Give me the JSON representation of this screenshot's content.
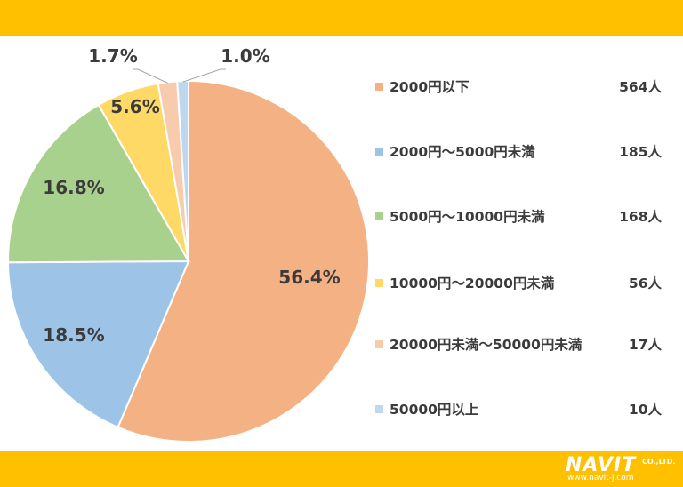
{
  "chart_data": {
    "type": "pie",
    "slices": [
      {
        "label": "2000円以下",
        "count": "564人",
        "percent": 56.4,
        "percent_label": "56.4%",
        "color": "#F4B183"
      },
      {
        "label": "2000円～5000円未満",
        "count": "185人",
        "percent": 18.5,
        "percent_label": "18.5%",
        "color": "#9DC3E6"
      },
      {
        "label": "5000円～10000円未満",
        "count": "168人",
        "percent": 16.8,
        "percent_label": "16.8%",
        "color": "#A9D18E"
      },
      {
        "label": "10000円～20000円未満",
        "count": "56人",
        "percent": 5.6,
        "percent_label": "5.6%",
        "color": "#FFD966"
      },
      {
        "label": "20000円未満～50000円未満",
        "count": "17人",
        "percent": 1.7,
        "percent_label": "1.7%",
        "color": "#F8CBAD"
      },
      {
        "label": "50000円以上",
        "count": "10人",
        "percent": 1.0,
        "percent_label": "1.0%",
        "color": "#BDD7EE"
      }
    ],
    "legend_position": "right"
  },
  "theme": {
    "band_color": "#FFC000",
    "text_color": "#3b3b3b"
  },
  "logo": {
    "name": "NAVIT",
    "suffix": "CO.,LTD.",
    "url": "www.navit-j.com"
  }
}
